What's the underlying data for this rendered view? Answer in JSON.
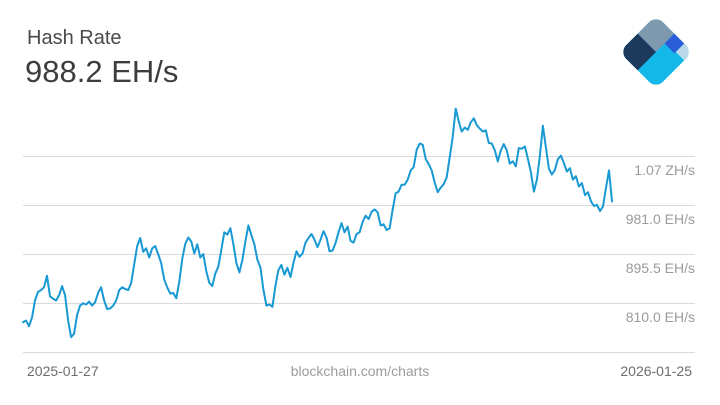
{
  "header": {
    "title": "Hash Rate",
    "value": "988.2 EH/s"
  },
  "logo": {
    "colors": {
      "slate": "#7E99AE",
      "navy": "#1B3A5C",
      "royal": "#2B5CD9",
      "cyan": "#14B9EA",
      "pale": "#BBD8E8"
    }
  },
  "chart_data": {
    "type": "line",
    "title": "Hash Rate",
    "current_value_label": "988.2 EH/s",
    "unit": "EH/s",
    "x_start_label": "2025-01-27",
    "x_end_label": "2026-01-25",
    "watermark": "blockchain.com/charts",
    "legend": "none",
    "grid": "horizontal",
    "line_color": "#1899D4",
    "grid_color": "#DBDBDB",
    "ylim": [
      725,
      1165
    ],
    "y_gridlines": [
      {
        "label": "1.07 ZH/s",
        "value": 1066.5
      },
      {
        "label": "981.0 EH/s",
        "value": 981.0
      },
      {
        "label": "895.5 EH/s",
        "value": 895.5
      },
      {
        "label": "810.0 EH/s",
        "value": 810.0
      }
    ],
    "values": [
      777,
      780,
      770,
      785,
      815,
      830,
      833,
      838,
      858,
      822,
      818,
      815,
      824,
      840,
      824,
      780,
      751,
      757,
      790,
      806,
      810,
      808,
      813,
      806,
      812,
      828,
      838,
      815,
      800,
      801,
      806,
      815,
      833,
      838,
      835,
      833,
      846,
      878,
      910,
      924,
      900,
      906,
      890,
      906,
      910,
      896,
      880,
      852,
      838,
      827,
      828,
      819,
      848,
      888,
      914,
      925,
      918,
      897,
      913,
      890,
      896,
      866,
      846,
      840,
      862,
      874,
      903,
      934,
      930,
      941,
      913,
      880,
      864,
      886,
      918,
      946,
      929,
      913,
      886,
      873,
      834,
      806,
      808,
      804,
      840,
      868,
      877,
      860,
      872,
      856,
      881,
      901,
      891,
      897,
      916,
      924,
      931,
      921,
      908,
      921,
      936,
      925,
      901,
      902,
      915,
      934,
      950,
      934,
      944,
      919,
      916,
      931,
      934,
      952,
      963,
      957,
      970,
      974,
      969,
      946,
      948,
      938,
      941,
      973,
      1002,
      1005,
      1017,
      1017,
      1026,
      1042,
      1048,
      1078,
      1089,
      1087,
      1062,
      1053,
      1042,
      1021,
      1004,
      1012,
      1018,
      1030,
      1065,
      1100,
      1150,
      1128,
      1110,
      1117,
      1113,
      1126,
      1133,
      1121,
      1115,
      1110,
      1112,
      1090,
      1089,
      1077,
      1058,
      1077,
      1088,
      1077,
      1054,
      1058,
      1049,
      1081,
      1080,
      1084,
      1062,
      1039,
      1005,
      1026,
      1068,
      1120,
      1082,
      1045,
      1035,
      1043,
      1062,
      1068,
      1055,
      1040,
      1046,
      1026,
      1032,
      1014,
      1020,
      999,
      1004,
      988,
      980,
      982,
      971,
      979,
      1012,
      1042,
      988
    ]
  }
}
